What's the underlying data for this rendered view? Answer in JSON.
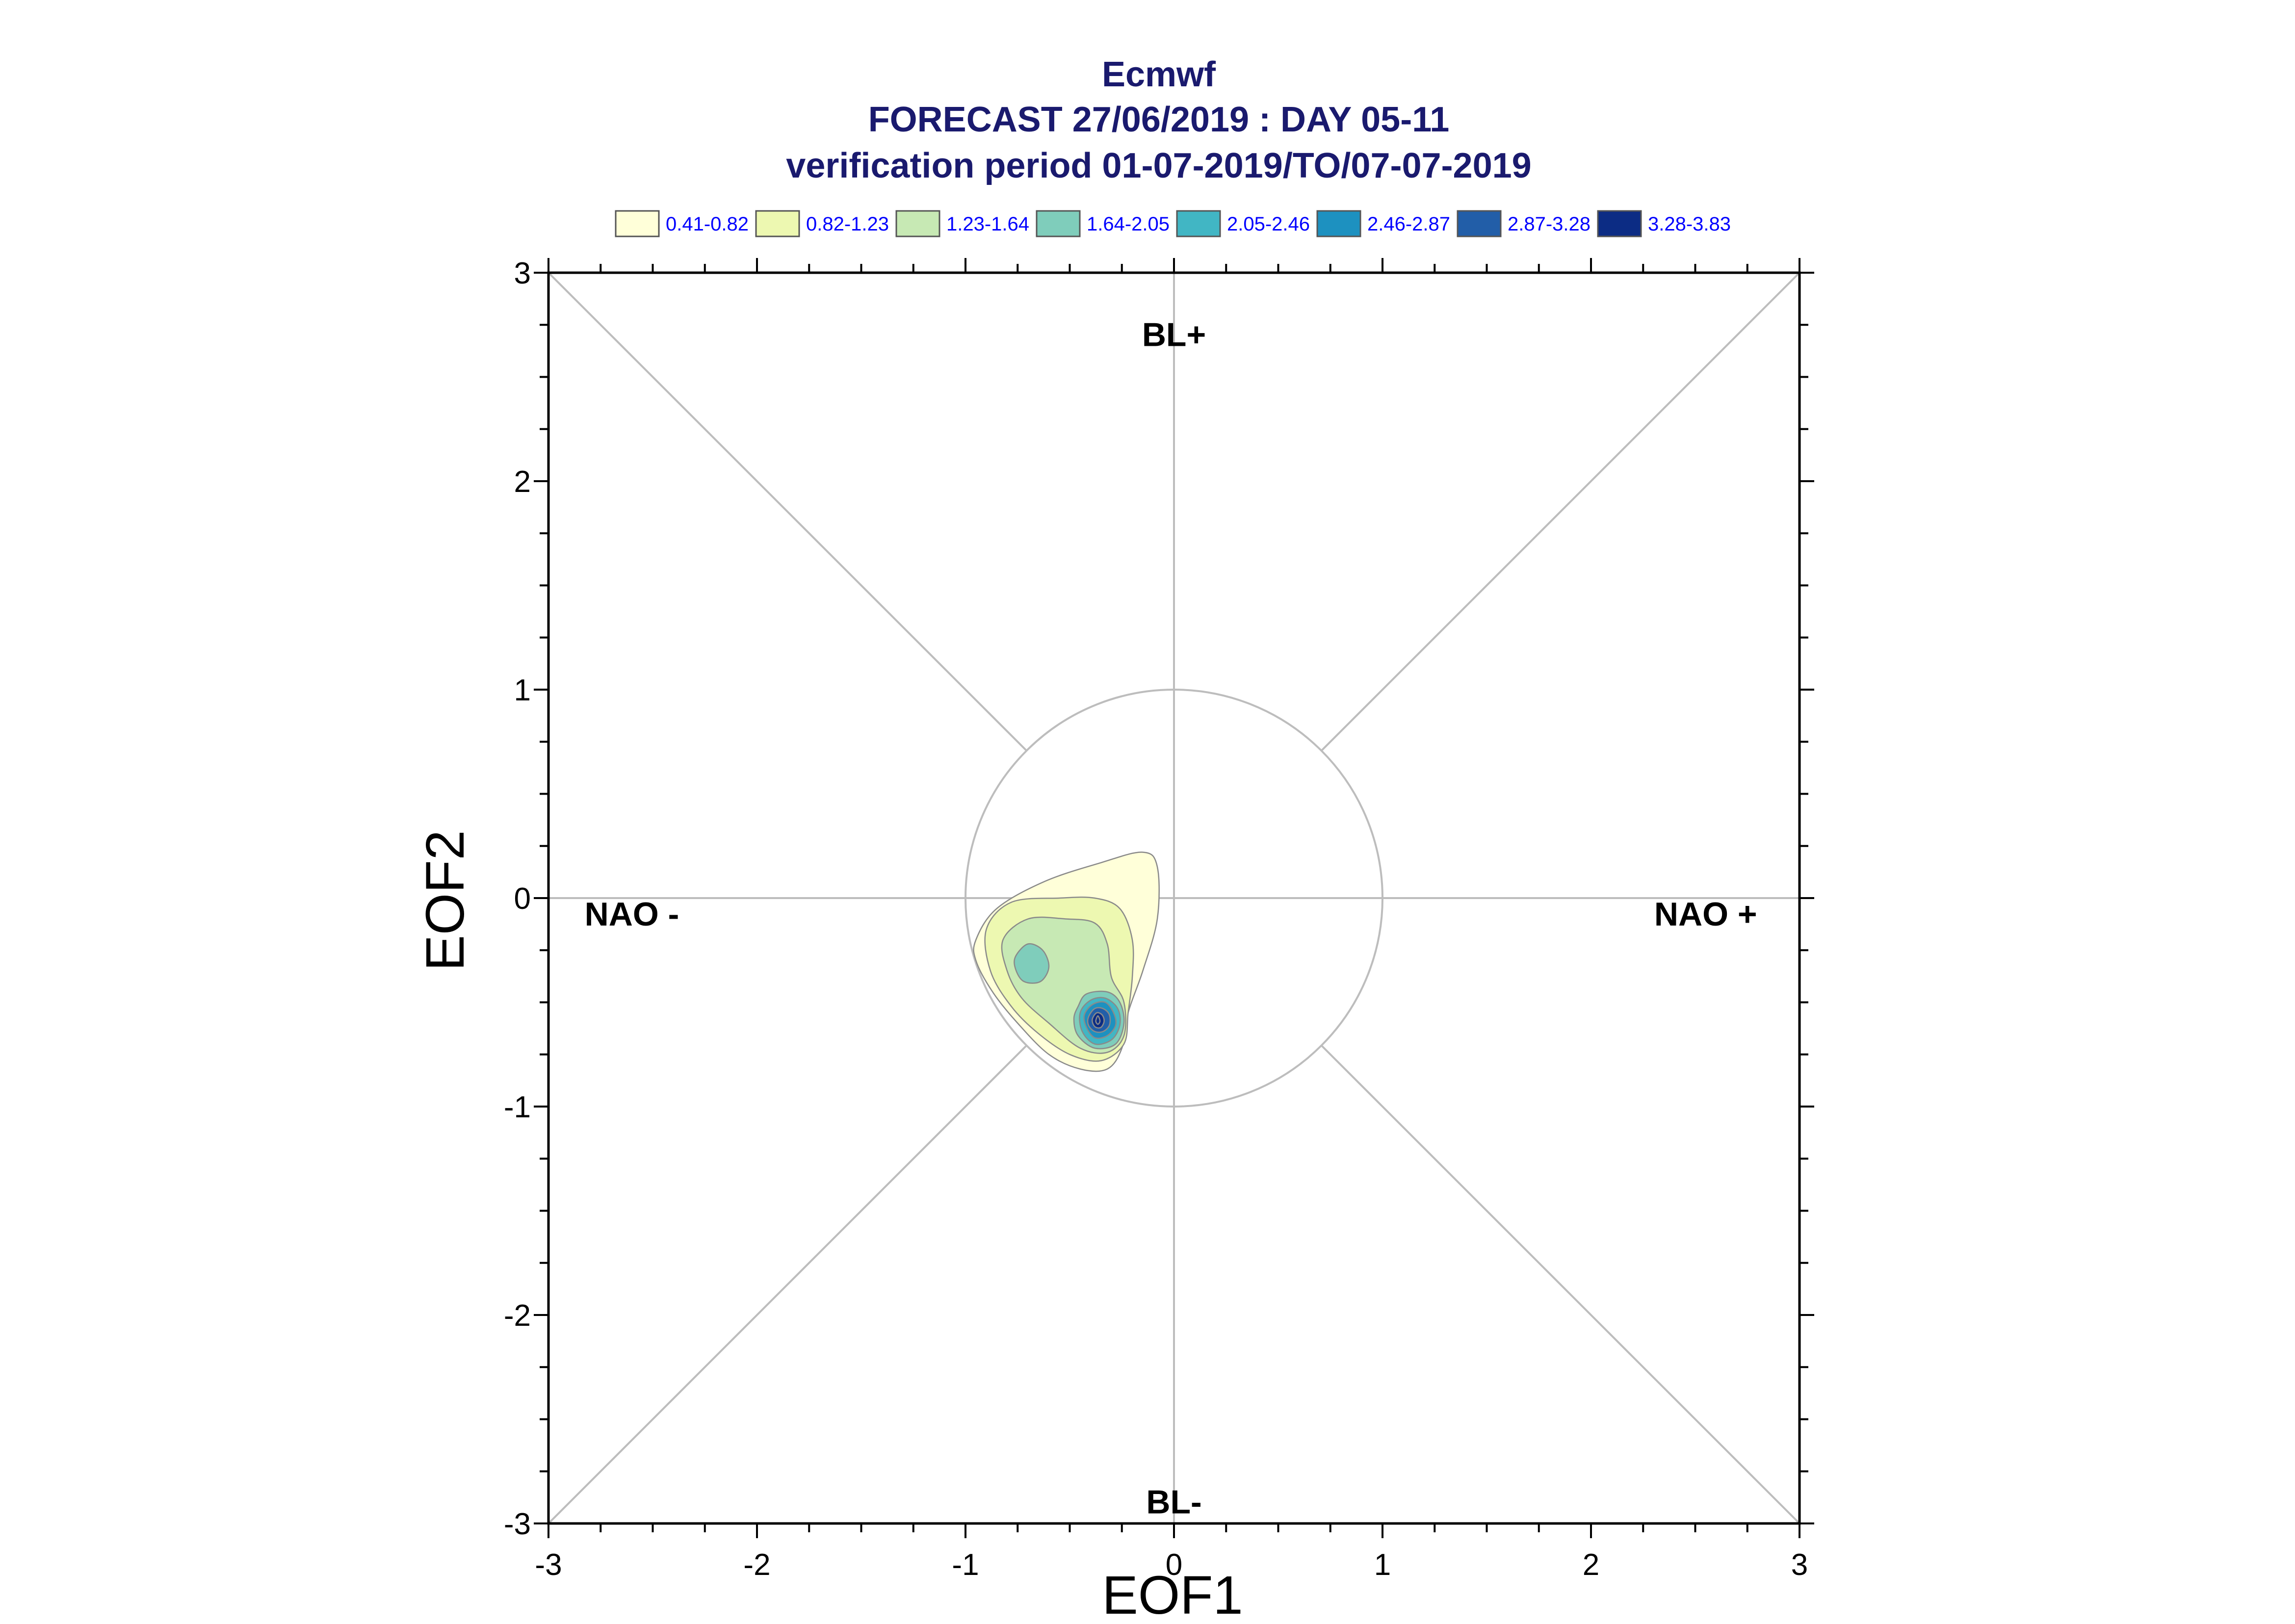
{
  "chart_data": {
    "type": "contour",
    "title_lines": [
      "Ecmwf",
      "FORECAST 27/06/2019 : DAY 05-11",
      "verification period 01-07-2019/TO/07-07-2019"
    ],
    "xlabel": "EOF1",
    "ylabel": "EOF2",
    "xlim": [
      -3,
      3
    ],
    "ylim": [
      -3,
      3
    ],
    "x_ticks": [
      "-3",
      "-2",
      "-1",
      "0",
      "1",
      "2",
      "3"
    ],
    "y_ticks": [
      "-3",
      "-2",
      "-1",
      "0",
      "1",
      "2",
      "3"
    ],
    "grid": false,
    "reference_lines": [
      "x=0",
      "y=0",
      "y=x",
      "y=-x",
      "unit circle"
    ],
    "regime_labels": [
      {
        "text": "BL+",
        "x": 0,
        "y": 2.7
      },
      {
        "text": "BL-",
        "x": 0,
        "y": -2.9
      },
      {
        "text": "NAO -",
        "x": -2.6,
        "y": -0.08
      },
      {
        "text": "NAO +",
        "x": 2.55,
        "y": -0.08
      }
    ],
    "legend": {
      "placement": "top",
      "entries": [
        {
          "label": "0.41-0.82",
          "color": "#ffffd9"
        },
        {
          "label": "0.82-1.23",
          "color": "#edf8b1"
        },
        {
          "label": "1.23-1.64",
          "color": "#c7e9b4"
        },
        {
          "label": "1.64-2.05",
          "color": "#7fcdbb"
        },
        {
          "label": "2.05-2.46",
          "color": "#41b6c4"
        },
        {
          "label": "2.46-2.87",
          "color": "#1d91c0"
        },
        {
          "label": "2.87-3.28",
          "color": "#225ea8"
        },
        {
          "label": "3.28-3.83",
          "color": "#0c2c84"
        }
      ]
    },
    "density_peaks": [
      {
        "x": -0.37,
        "y": -0.58,
        "max": 3.83
      },
      {
        "x": -0.68,
        "y": -0.32,
        "max": 2.0
      }
    ],
    "contour_levels": [
      {
        "level": 0.41,
        "points": [
          [
            -0.95,
            -0.2
          ],
          [
            -0.85,
            -0.05
          ],
          [
            -0.62,
            0.08
          ],
          [
            -0.35,
            0.17
          ],
          [
            -0.15,
            0.22
          ],
          [
            -0.08,
            0.15
          ],
          [
            -0.08,
            -0.1
          ],
          [
            -0.15,
            -0.35
          ],
          [
            -0.22,
            -0.55
          ],
          [
            -0.25,
            -0.72
          ],
          [
            -0.32,
            -0.82
          ],
          [
            -0.45,
            -0.82
          ],
          [
            -0.6,
            -0.75
          ],
          [
            -0.75,
            -0.6
          ],
          [
            -0.87,
            -0.45
          ],
          [
            -0.95,
            -0.3
          ]
        ]
      },
      {
        "level": 0.82,
        "points": [
          [
            -0.9,
            -0.15
          ],
          [
            -0.78,
            -0.02
          ],
          [
            -0.55,
            0.0
          ],
          [
            -0.38,
            0.0
          ],
          [
            -0.26,
            -0.05
          ],
          [
            -0.2,
            -0.2
          ],
          [
            -0.2,
            -0.38
          ],
          [
            -0.22,
            -0.55
          ],
          [
            -0.24,
            -0.7
          ],
          [
            -0.35,
            -0.78
          ],
          [
            -0.5,
            -0.75
          ],
          [
            -0.65,
            -0.65
          ],
          [
            -0.78,
            -0.52
          ],
          [
            -0.88,
            -0.35
          ]
        ]
      },
      {
        "level": 1.23,
        "points": [
          [
            -0.82,
            -0.2
          ],
          [
            -0.7,
            -0.1
          ],
          [
            -0.52,
            -0.1
          ],
          [
            -0.38,
            -0.12
          ],
          [
            -0.32,
            -0.22
          ],
          [
            -0.3,
            -0.38
          ],
          [
            -0.24,
            -0.5
          ],
          [
            -0.24,
            -0.66
          ],
          [
            -0.32,
            -0.74
          ],
          [
            -0.45,
            -0.72
          ],
          [
            -0.6,
            -0.6
          ],
          [
            -0.73,
            -0.48
          ],
          [
            -0.8,
            -0.35
          ]
        ]
      },
      {
        "level": 1.64,
        "points": [
          [
            -0.76,
            -0.28
          ],
          [
            -0.7,
            -0.22
          ],
          [
            -0.63,
            -0.25
          ],
          [
            -0.6,
            -0.33
          ],
          [
            -0.64,
            -0.4
          ],
          [
            -0.72,
            -0.4
          ],
          [
            -0.76,
            -0.34
          ]
        ]
      },
      {
        "level": 1.64,
        "points": [
          [
            -0.46,
            -0.52
          ],
          [
            -0.42,
            -0.46
          ],
          [
            -0.32,
            -0.45
          ],
          [
            -0.26,
            -0.5
          ],
          [
            -0.24,
            -0.6
          ],
          [
            -0.28,
            -0.7
          ],
          [
            -0.38,
            -0.72
          ],
          [
            -0.46,
            -0.66
          ],
          [
            -0.48,
            -0.58
          ]
        ]
      },
      {
        "level": 2.05,
        "points": [
          [
            -0.45,
            -0.55
          ],
          [
            -0.4,
            -0.49
          ],
          [
            -0.33,
            -0.48
          ],
          [
            -0.27,
            -0.53
          ],
          [
            -0.26,
            -0.61
          ],
          [
            -0.3,
            -0.68
          ],
          [
            -0.38,
            -0.7
          ],
          [
            -0.44,
            -0.64
          ]
        ]
      },
      {
        "level": 2.46,
        "points": [
          [
            -0.43,
            -0.56
          ],
          [
            -0.39,
            -0.51
          ],
          [
            -0.33,
            -0.5
          ],
          [
            -0.29,
            -0.55
          ],
          [
            -0.28,
            -0.61
          ],
          [
            -0.32,
            -0.66
          ],
          [
            -0.38,
            -0.67
          ],
          [
            -0.42,
            -0.62
          ]
        ]
      },
      {
        "level": 2.87,
        "points": [
          [
            -0.41,
            -0.57
          ],
          [
            -0.38,
            -0.53
          ],
          [
            -0.34,
            -0.53
          ],
          [
            -0.31,
            -0.56
          ],
          [
            -0.31,
            -0.61
          ],
          [
            -0.34,
            -0.64
          ],
          [
            -0.38,
            -0.64
          ],
          [
            -0.41,
            -0.61
          ]
        ]
      },
      {
        "level": 3.28,
        "points": [
          [
            -0.39,
            -0.575
          ],
          [
            -0.37,
            -0.55
          ],
          [
            -0.345,
            -0.56
          ],
          [
            -0.335,
            -0.59
          ],
          [
            -0.35,
            -0.62
          ],
          [
            -0.375,
            -0.62
          ],
          [
            -0.39,
            -0.6
          ]
        ]
      },
      {
        "level": 3.83,
        "points": [
          [
            -0.375,
            -0.59
          ],
          [
            -0.365,
            -0.565
          ],
          [
            -0.355,
            -0.59
          ],
          [
            -0.365,
            -0.605
          ]
        ]
      }
    ]
  }
}
